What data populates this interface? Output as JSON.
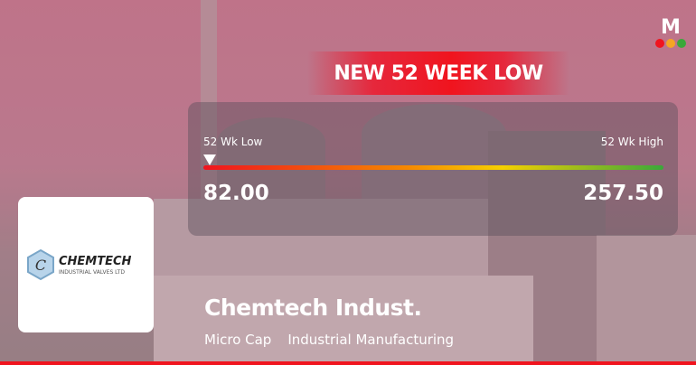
{
  "brand": {
    "logo_letter": "M",
    "dot_colors": [
      "#f0141e",
      "#f5a623",
      "#3aa83a"
    ]
  },
  "alert": {
    "label": "NEW 52 WEEK LOW",
    "color": "#f0141e"
  },
  "range": {
    "low_label": "52 Wk Low",
    "high_label": "52 Wk High",
    "low": "82.00",
    "high": "257.50",
    "current_position_percent": 0
  },
  "company": {
    "name": "Chemtech Indust.",
    "cap": "Micro Cap",
    "sector": "Industrial Manufacturing",
    "logo_text": "CHEMTECH",
    "logo_subtext": "INDUSTRIAL VALVES LTD"
  }
}
